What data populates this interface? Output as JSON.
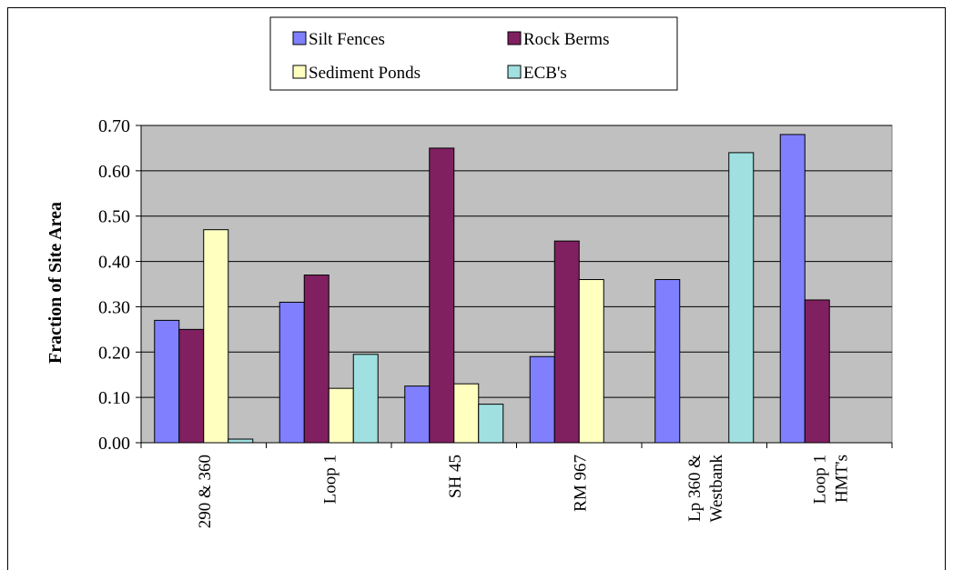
{
  "chart_data": {
    "type": "bar",
    "title": "",
    "xlabel": "",
    "ylabel": "Fraction of Site Area",
    "ylim": [
      0,
      0.7
    ],
    "yticks": [
      "0.00",
      "0.10",
      "0.20",
      "0.30",
      "0.40",
      "0.50",
      "0.60",
      "0.70"
    ],
    "grid": true,
    "legend_position": "top-center",
    "categories": [
      [
        "290 & 360"
      ],
      [
        "Loop 1"
      ],
      [
        "SH 45"
      ],
      [
        "RM 967"
      ],
      [
        "Lp 360 &",
        "Westbank"
      ],
      [
        "Loop 1",
        "HMT's"
      ]
    ],
    "series": [
      {
        "name": "Silt Fences",
        "color": "#8080ff",
        "values": [
          0.27,
          0.31,
          0.125,
          0.19,
          0.36,
          0.68
        ]
      },
      {
        "name": "Rock Berms",
        "color": "#802060",
        "values": [
          0.25,
          0.37,
          0.65,
          0.445,
          0,
          0.315
        ]
      },
      {
        "name": "Sediment Ponds",
        "color": "#ffffc0",
        "values": [
          0.47,
          0.12,
          0.13,
          0.36,
          0,
          0
        ]
      },
      {
        "name": "ECB's",
        "color": "#a0e0e0",
        "values": [
          0.008,
          0.195,
          0.085,
          0,
          0.64,
          0
        ]
      }
    ],
    "plot_background": "#c0c0c0"
  }
}
